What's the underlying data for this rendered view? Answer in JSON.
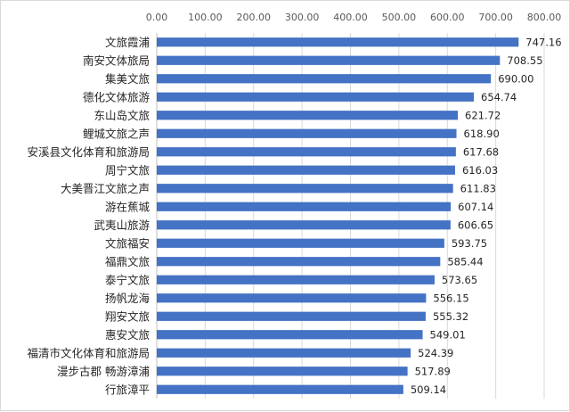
{
  "chart_data": {
    "type": "bar",
    "orientation": "horizontal",
    "title": "",
    "xlabel": "",
    "ylabel": "",
    "xlim": [
      0,
      800
    ],
    "x_ticks": [
      "0.00",
      "100.00",
      "200.00",
      "300.00",
      "400.00",
      "500.00",
      "600.00",
      "700.00",
      "800.00"
    ],
    "x_axis_position": "top",
    "grid": true,
    "legend": "none",
    "bar_color": "#4472C4",
    "categories": [
      "文旅霞浦",
      "南安文体旅局",
      "集美文旅",
      "德化文体旅游",
      "东山岛文旅",
      "鲤城文旅之声",
      "安溪县文化体育和旅游局",
      "周宁文旅",
      "大美晋江文旅之声",
      "游在蕉城",
      "武夷山旅游",
      "文旅福安",
      "福鼎文旅",
      "泰宁文旅",
      "扬帆龙海",
      "翔安文旅",
      "惠安文旅",
      "福清市文化体育和旅游局",
      "漫步古郡 畅游漳浦",
      "行旅漳平"
    ],
    "values": [
      747.16,
      708.55,
      690.0,
      654.74,
      621.72,
      618.9,
      617.68,
      616.03,
      611.83,
      607.14,
      606.65,
      593.75,
      585.44,
      573.65,
      556.15,
      555.32,
      549.01,
      524.39,
      517.89,
      509.14
    ],
    "value_labels": [
      "747.16",
      "708.55",
      "690.00",
      "654.74",
      "621.72",
      "618.90",
      "617.68",
      "616.03",
      "611.83",
      "607.14",
      "606.65",
      "593.75",
      "585.44",
      "573.65",
      "556.15",
      "555.32",
      "549.01",
      "524.39",
      "517.89",
      "509.14"
    ]
  }
}
